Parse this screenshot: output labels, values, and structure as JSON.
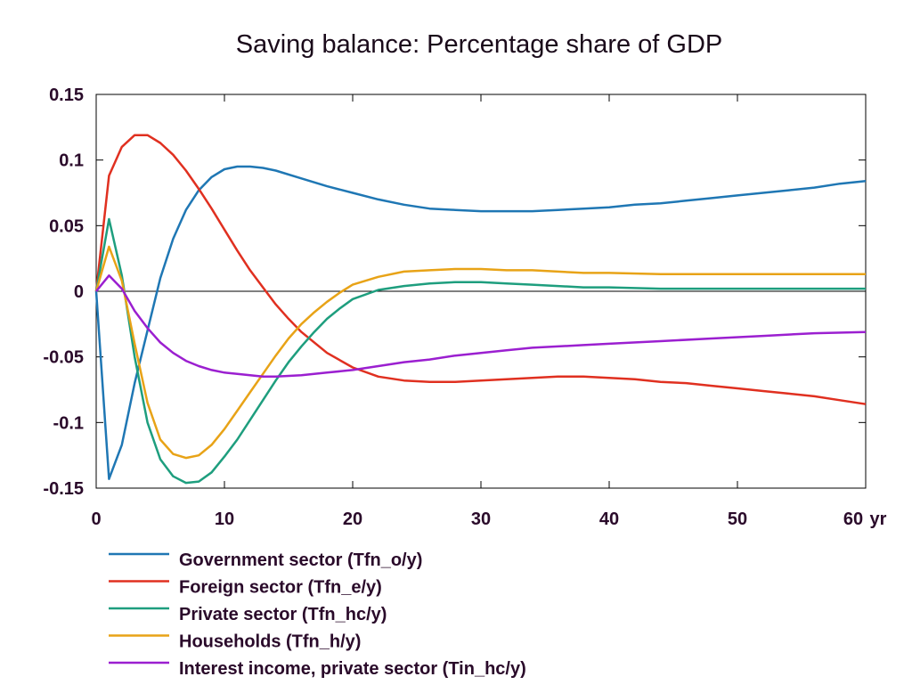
{
  "chart_data": {
    "type": "line",
    "title": "Saving balance: Percentage share of GDP",
    "xlabel": "",
    "ylabel": "",
    "x_unit": "yr",
    "xlim": [
      0,
      60
    ],
    "ylim": [
      -0.15,
      0.15
    ],
    "x_ticks": [
      0,
      10,
      20,
      30,
      40,
      50,
      60
    ],
    "x_tick_labels": [
      "0",
      "10",
      "20",
      "30",
      "40",
      "50",
      "60"
    ],
    "y_ticks": [
      0.15,
      0.1,
      0.05,
      0,
      -0.05,
      -0.1,
      -0.15
    ],
    "y_tick_labels": [
      "0.15",
      "0.1",
      "0.05",
      "0",
      "-0.05",
      "-0.1",
      "-0.15"
    ],
    "grid": false,
    "zero_line": true,
    "legend_position": "below",
    "series": [
      {
        "name": "Government sector (Tfn_o/y)",
        "color": "#1f77b4",
        "points": [
          [
            0,
            0
          ],
          [
            1,
            -0.143
          ],
          [
            2,
            -0.117
          ],
          [
            3,
            -0.07
          ],
          [
            4,
            -0.03
          ],
          [
            5,
            0.01
          ],
          [
            6,
            0.04
          ],
          [
            7,
            0.062
          ],
          [
            8,
            0.077
          ],
          [
            9,
            0.087
          ],
          [
            10,
            0.093
          ],
          [
            11,
            0.095
          ],
          [
            12,
            0.095
          ],
          [
            13,
            0.094
          ],
          [
            14,
            0.092
          ],
          [
            16,
            0.086
          ],
          [
            18,
            0.08
          ],
          [
            20,
            0.075
          ],
          [
            22,
            0.07
          ],
          [
            24,
            0.066
          ],
          [
            26,
            0.063
          ],
          [
            28,
            0.062
          ],
          [
            30,
            0.061
          ],
          [
            32,
            0.061
          ],
          [
            34,
            0.061
          ],
          [
            36,
            0.062
          ],
          [
            38,
            0.063
          ],
          [
            40,
            0.064
          ],
          [
            42,
            0.066
          ],
          [
            44,
            0.067
          ],
          [
            46,
            0.069
          ],
          [
            48,
            0.071
          ],
          [
            50,
            0.073
          ],
          [
            52,
            0.075
          ],
          [
            54,
            0.077
          ],
          [
            56,
            0.079
          ],
          [
            58,
            0.082
          ],
          [
            60,
            0.084
          ]
        ]
      },
      {
        "name": "Foreign sector (Tfn_e/y)",
        "color": "#e03020",
        "points": [
          [
            0,
            0
          ],
          [
            1,
            0.088
          ],
          [
            2,
            0.11
          ],
          [
            3,
            0.119
          ],
          [
            4,
            0.119
          ],
          [
            5,
            0.113
          ],
          [
            6,
            0.104
          ],
          [
            7,
            0.092
          ],
          [
            8,
            0.078
          ],
          [
            9,
            0.063
          ],
          [
            10,
            0.047
          ],
          [
            11,
            0.031
          ],
          [
            12,
            0.016
          ],
          [
            13,
            0.003
          ],
          [
            14,
            -0.01
          ],
          [
            15,
            -0.021
          ],
          [
            16,
            -0.031
          ],
          [
            18,
            -0.047
          ],
          [
            20,
            -0.058
          ],
          [
            22,
            -0.065
          ],
          [
            24,
            -0.068
          ],
          [
            26,
            -0.069
          ],
          [
            28,
            -0.069
          ],
          [
            30,
            -0.068
          ],
          [
            32,
            -0.067
          ],
          [
            34,
            -0.066
          ],
          [
            36,
            -0.065
          ],
          [
            38,
            -0.065
          ],
          [
            40,
            -0.066
          ],
          [
            42,
            -0.067
          ],
          [
            44,
            -0.069
          ],
          [
            46,
            -0.07
          ],
          [
            48,
            -0.072
          ],
          [
            50,
            -0.074
          ],
          [
            52,
            -0.076
          ],
          [
            54,
            -0.078
          ],
          [
            56,
            -0.08
          ],
          [
            58,
            -0.083
          ],
          [
            60,
            -0.086
          ]
        ]
      },
      {
        "name": "Private sector (Tfn_hc/y)",
        "color": "#1e9e7e",
        "points": [
          [
            0,
            0
          ],
          [
            1,
            0.055
          ],
          [
            2,
            0.012
          ],
          [
            3,
            -0.05
          ],
          [
            4,
            -0.1
          ],
          [
            5,
            -0.128
          ],
          [
            6,
            -0.141
          ],
          [
            7,
            -0.146
          ],
          [
            8,
            -0.145
          ],
          [
            9,
            -0.138
          ],
          [
            10,
            -0.126
          ],
          [
            11,
            -0.113
          ],
          [
            12,
            -0.098
          ],
          [
            13,
            -0.083
          ],
          [
            14,
            -0.068
          ],
          [
            15,
            -0.054
          ],
          [
            16,
            -0.042
          ],
          [
            17,
            -0.031
          ],
          [
            18,
            -0.021
          ],
          [
            19,
            -0.013
          ],
          [
            20,
            -0.006
          ],
          [
            22,
            0.001
          ],
          [
            24,
            0.004
          ],
          [
            26,
            0.006
          ],
          [
            28,
            0.007
          ],
          [
            30,
            0.007
          ],
          [
            32,
            0.006
          ],
          [
            34,
            0.005
          ],
          [
            36,
            0.004
          ],
          [
            38,
            0.003
          ],
          [
            40,
            0.003
          ],
          [
            44,
            0.002
          ],
          [
            48,
            0.002
          ],
          [
            52,
            0.002
          ],
          [
            56,
            0.002
          ],
          [
            60,
            0.002
          ]
        ]
      },
      {
        "name": "Households (Tfn_h/y)",
        "color": "#e8a317",
        "points": [
          [
            0,
            0
          ],
          [
            1,
            0.034
          ],
          [
            2,
            0.008
          ],
          [
            3,
            -0.04
          ],
          [
            4,
            -0.085
          ],
          [
            5,
            -0.113
          ],
          [
            6,
            -0.124
          ],
          [
            7,
            -0.127
          ],
          [
            8,
            -0.125
          ],
          [
            9,
            -0.117
          ],
          [
            10,
            -0.105
          ],
          [
            11,
            -0.091
          ],
          [
            12,
            -0.077
          ],
          [
            13,
            -0.063
          ],
          [
            14,
            -0.049
          ],
          [
            15,
            -0.036
          ],
          [
            16,
            -0.025
          ],
          [
            17,
            -0.016
          ],
          [
            18,
            -0.008
          ],
          [
            19,
            -0.001
          ],
          [
            20,
            0.005
          ],
          [
            22,
            0.011
          ],
          [
            24,
            0.015
          ],
          [
            26,
            0.016
          ],
          [
            28,
            0.017
          ],
          [
            30,
            0.017
          ],
          [
            32,
            0.016
          ],
          [
            34,
            0.016
          ],
          [
            36,
            0.015
          ],
          [
            38,
            0.014
          ],
          [
            40,
            0.014
          ],
          [
            44,
            0.013
          ],
          [
            48,
            0.013
          ],
          [
            52,
            0.013
          ],
          [
            56,
            0.013
          ],
          [
            60,
            0.013
          ]
        ]
      },
      {
        "name": "Interest income, private sector (Tin_hc/y)",
        "color": "#9b1fd0",
        "points": [
          [
            0,
            0
          ],
          [
            1,
            0.012
          ],
          [
            2,
            0.002
          ],
          [
            3,
            -0.015
          ],
          [
            4,
            -0.028
          ],
          [
            5,
            -0.039
          ],
          [
            6,
            -0.047
          ],
          [
            7,
            -0.053
          ],
          [
            8,
            -0.057
          ],
          [
            9,
            -0.06
          ],
          [
            10,
            -0.062
          ],
          [
            11,
            -0.063
          ],
          [
            12,
            -0.064
          ],
          [
            13,
            -0.065
          ],
          [
            14,
            -0.065
          ],
          [
            16,
            -0.064
          ],
          [
            18,
            -0.062
          ],
          [
            20,
            -0.06
          ],
          [
            22,
            -0.057
          ],
          [
            24,
            -0.054
          ],
          [
            26,
            -0.052
          ],
          [
            28,
            -0.049
          ],
          [
            30,
            -0.047
          ],
          [
            32,
            -0.045
          ],
          [
            34,
            -0.043
          ],
          [
            36,
            -0.042
          ],
          [
            38,
            -0.041
          ],
          [
            40,
            -0.04
          ],
          [
            44,
            -0.038
          ],
          [
            48,
            -0.036
          ],
          [
            52,
            -0.034
          ],
          [
            56,
            -0.032
          ],
          [
            60,
            -0.031
          ]
        ]
      }
    ]
  }
}
